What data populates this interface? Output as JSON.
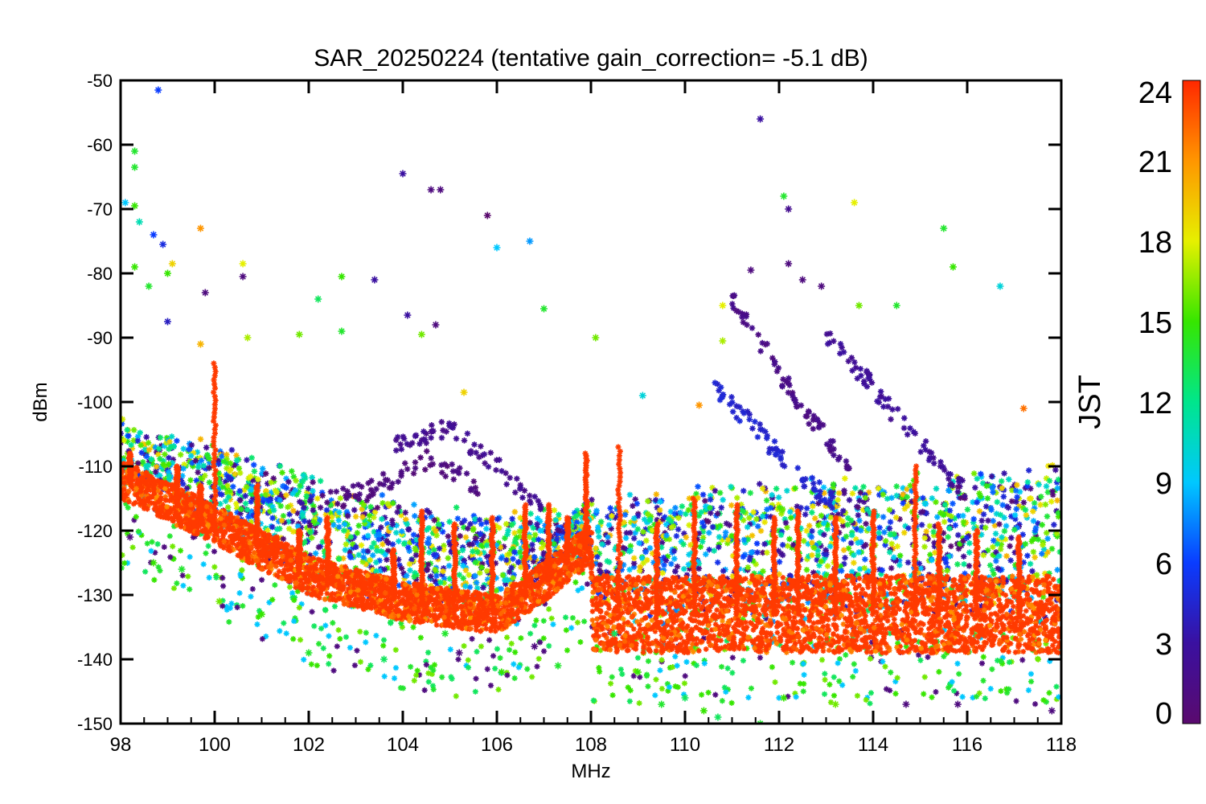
{
  "chart_data": {
    "type": "scatter",
    "title": "SAR_20250224 (tentative gain_correction= -5.1 dB)",
    "xlabel": "MHz",
    "ylabel": "dBm",
    "xlim": [
      98,
      118
    ],
    "ylim": [
      -150,
      -50
    ],
    "x_ticks": [
      "98",
      "100",
      "102",
      "104",
      "106",
      "108",
      "110",
      "112",
      "114",
      "116",
      "118"
    ],
    "y_ticks": [
      "-50",
      "-60",
      "-70",
      "-80",
      "-90",
      "-100",
      "-110",
      "-120",
      "-130",
      "-140",
      "-150"
    ],
    "grid": false,
    "marker": "asterisk",
    "colorbar": {
      "label": "JST",
      "range": [
        0,
        24
      ],
      "ticks": [
        "24",
        "21",
        "18",
        "15",
        "12",
        "9",
        "6",
        "3",
        "0"
      ],
      "colormap": "rainbow (purple-blue-cyan-green-yellow-red)",
      "placement": "right"
    },
    "color_stops": [
      "#5a0a6e",
      "#3a10a0",
      "#0a3cff",
      "#00c8ff",
      "#00e68c",
      "#36e600",
      "#e6f000",
      "#ff9600",
      "#ff2800"
    ],
    "baseline_trend": [
      {
        "x": 98,
        "y": -112
      },
      {
        "x": 100,
        "y": -119
      },
      {
        "x": 102,
        "y": -127
      },
      {
        "x": 104,
        "y": -131
      },
      {
        "x": 106,
        "y": -133
      },
      {
        "x": 107,
        "y": -128
      },
      {
        "x": 108,
        "y": -122
      },
      {
        "x": 108.05,
        "y": -133
      },
      {
        "x": 112,
        "y": -133
      },
      {
        "x": 118,
        "y": -133
      }
    ],
    "upper_envelope": [
      {
        "x": 98,
        "y": -104
      },
      {
        "x": 100,
        "y": -108
      },
      {
        "x": 102,
        "y": -113
      },
      {
        "x": 104,
        "y": -117
      },
      {
        "x": 106,
        "y": -119
      },
      {
        "x": 108,
        "y": -117
      },
      {
        "x": 110,
        "y": -115
      },
      {
        "x": 112,
        "y": -114
      },
      {
        "x": 114,
        "y": -113
      },
      {
        "x": 116,
        "y": -112
      },
      {
        "x": 118,
        "y": -111
      }
    ],
    "spikes": [
      {
        "x": 98.2,
        "y": -108
      },
      {
        "x": 99.2,
        "y": -110
      },
      {
        "x": 99.7,
        "y": -113
      },
      {
        "x": 100.0,
        "y": -94
      },
      {
        "x": 100.9,
        "y": -113
      },
      {
        "x": 101.3,
        "y": -121
      },
      {
        "x": 101.8,
        "y": -120
      },
      {
        "x": 102.4,
        "y": -118
      },
      {
        "x": 103.8,
        "y": -123
      },
      {
        "x": 104.4,
        "y": -117
      },
      {
        "x": 105.1,
        "y": -119
      },
      {
        "x": 105.9,
        "y": -118
      },
      {
        "x": 106.6,
        "y": -116
      },
      {
        "x": 107.1,
        "y": -116
      },
      {
        "x": 107.5,
        "y": -118
      },
      {
        "x": 107.9,
        "y": -108
      },
      {
        "x": 108.6,
        "y": -107
      },
      {
        "x": 109.4,
        "y": -119
      },
      {
        "x": 110.2,
        "y": -115
      },
      {
        "x": 111.1,
        "y": -116
      },
      {
        "x": 111.9,
        "y": -118
      },
      {
        "x": 112.4,
        "y": -117
      },
      {
        "x": 113.2,
        "y": -118
      },
      {
        "x": 114.0,
        "y": -117
      },
      {
        "x": 114.9,
        "y": -110
      },
      {
        "x": 115.4,
        "y": -119
      },
      {
        "x": 116.2,
        "y": -120
      },
      {
        "x": 117.1,
        "y": -121
      }
    ],
    "late_arcs": [
      {
        "hour": 1.5,
        "points": [
          {
            "x": 103.8,
            "y": -107
          },
          {
            "x": 105.0,
            "y": -104
          },
          {
            "x": 106.0,
            "y": -110
          },
          {
            "x": 107.0,
            "y": -117
          }
        ]
      },
      {
        "hour": 1.0,
        "points": [
          {
            "x": 111.0,
            "y": -84
          },
          {
            "x": 111.8,
            "y": -93
          },
          {
            "x": 112.5,
            "y": -101
          },
          {
            "x": 113.5,
            "y": -110
          }
        ]
      },
      {
        "hour": 2.0,
        "points": [
          {
            "x": 113.0,
            "y": -90
          },
          {
            "x": 113.8,
            "y": -96
          },
          {
            "x": 114.8,
            "y": -105
          },
          {
            "x": 116.0,
            "y": -114
          }
        ]
      },
      {
        "hour": 4.0,
        "points": [
          {
            "x": 110.6,
            "y": -98
          },
          {
            "x": 111.5,
            "y": -104
          },
          {
            "x": 112.2,
            "y": -110
          },
          {
            "x": 113.2,
            "y": -116
          }
        ]
      },
      {
        "hour": 0.5,
        "points": [
          {
            "x": 102.2,
            "y": -116
          },
          {
            "x": 103.2,
            "y": -114
          },
          {
            "x": 104.5,
            "y": -109
          },
          {
            "x": 105.6,
            "y": -113
          }
        ]
      }
    ],
    "outliers": [
      {
        "x": 98.8,
        "y": -51.5,
        "hour": 6
      },
      {
        "x": 111.6,
        "y": -56,
        "hour": 3
      },
      {
        "x": 98.3,
        "y": -61,
        "hour": 14
      },
      {
        "x": 98.3,
        "y": -63.5,
        "hour": 14
      },
      {
        "x": 104.0,
        "y": -64.5,
        "hour": 3
      },
      {
        "x": 104.6,
        "y": -67,
        "hour": 1
      },
      {
        "x": 104.8,
        "y": -67,
        "hour": 1
      },
      {
        "x": 105.8,
        "y": -71,
        "hour": 0
      },
      {
        "x": 112.1,
        "y": -68,
        "hour": 14
      },
      {
        "x": 112.2,
        "y": -70,
        "hour": 2
      },
      {
        "x": 113.6,
        "y": -69,
        "hour": 18
      },
      {
        "x": 98.1,
        "y": -69,
        "hour": 9
      },
      {
        "x": 98.3,
        "y": -69.5,
        "hour": 15
      },
      {
        "x": 98.4,
        "y": -72,
        "hour": 11
      },
      {
        "x": 99.7,
        "y": -73,
        "hour": 21
      },
      {
        "x": 98.7,
        "y": -74,
        "hour": 6
      },
      {
        "x": 98.9,
        "y": -75.5,
        "hour": 5
      },
      {
        "x": 106.0,
        "y": -76,
        "hour": 9
      },
      {
        "x": 106.7,
        "y": -75,
        "hour": 8
      },
      {
        "x": 115.5,
        "y": -73,
        "hour": 14
      },
      {
        "x": 115.7,
        "y": -79,
        "hour": 15
      },
      {
        "x": 116.7,
        "y": -82,
        "hour": 10
      },
      {
        "x": 99.1,
        "y": -78.5,
        "hour": 19
      },
      {
        "x": 100.6,
        "y": -78.5,
        "hour": 18
      },
      {
        "x": 98.3,
        "y": -79,
        "hour": 15
      },
      {
        "x": 99.0,
        "y": -80,
        "hour": 15
      },
      {
        "x": 100.6,
        "y": -80.5,
        "hour": 1
      },
      {
        "x": 102.7,
        "y": -80.5,
        "hour": 15
      },
      {
        "x": 103.4,
        "y": -81,
        "hour": 3
      },
      {
        "x": 111.4,
        "y": -79.5,
        "hour": 1
      },
      {
        "x": 112.2,
        "y": -78.5,
        "hour": 1
      },
      {
        "x": 112.5,
        "y": -81,
        "hour": 1
      },
      {
        "x": 112.9,
        "y": -82,
        "hour": 1
      },
      {
        "x": 98.6,
        "y": -82,
        "hour": 14
      },
      {
        "x": 99.8,
        "y": -83,
        "hour": 1
      },
      {
        "x": 107.0,
        "y": -85.5,
        "hour": 14
      },
      {
        "x": 110.8,
        "y": -85,
        "hour": 18
      },
      {
        "x": 113.7,
        "y": -85,
        "hour": 16
      },
      {
        "x": 114.5,
        "y": -85,
        "hour": 14
      },
      {
        "x": 99.0,
        "y": -87.5,
        "hour": 4
      },
      {
        "x": 99.7,
        "y": -91,
        "hour": 20
      },
      {
        "x": 100.7,
        "y": -90,
        "hour": 17
      },
      {
        "x": 101.8,
        "y": -89.5,
        "hour": 16
      },
      {
        "x": 102.2,
        "y": -84,
        "hour": 13
      },
      {
        "x": 102.7,
        "y": -89,
        "hour": 14
      },
      {
        "x": 104.1,
        "y": -86.5,
        "hour": 3
      },
      {
        "x": 104.4,
        "y": -89.5,
        "hour": 16
      },
      {
        "x": 104.7,
        "y": -88,
        "hour": 1
      },
      {
        "x": 108.1,
        "y": -90,
        "hour": 16
      },
      {
        "x": 110.8,
        "y": -90.5,
        "hour": 17
      },
      {
        "x": 110.3,
        "y": -100.5,
        "hour": 21
      },
      {
        "x": 117.2,
        "y": -101,
        "hour": 22
      },
      {
        "x": 109.1,
        "y": -99,
        "hour": 10
      },
      {
        "x": 105.3,
        "y": -98.5,
        "hour": 19
      },
      {
        "x": 108.5,
        "y": -136,
        "hour": 13
      },
      {
        "x": 109.0,
        "y": -142,
        "hour": 15
      },
      {
        "x": 109.5,
        "y": -147,
        "hour": 14
      },
      {
        "x": 110.0,
        "y": -146,
        "hour": 13
      },
      {
        "x": 110.4,
        "y": -148,
        "hour": 15
      },
      {
        "x": 110.7,
        "y": -149,
        "hour": 13
      },
      {
        "x": 111.6,
        "y": -150,
        "hour": 14
      },
      {
        "x": 112.1,
        "y": -146,
        "hour": 15
      },
      {
        "x": 114.7,
        "y": -147,
        "hour": 1
      },
      {
        "x": 115.8,
        "y": -147,
        "hour": 1
      },
      {
        "x": 117.8,
        "y": -148,
        "hour": 1
      },
      {
        "x": 113.2,
        "y": -147,
        "hour": 16
      },
      {
        "x": 102.0,
        "y": -139,
        "hour": 14
      },
      {
        "x": 103.6,
        "y": -140,
        "hour": 13
      },
      {
        "x": 104.9,
        "y": -136,
        "hour": 14
      },
      {
        "x": 106.1,
        "y": -142,
        "hour": 15
      },
      {
        "x": 107.3,
        "y": -141,
        "hour": 14
      },
      {
        "x": 105.2,
        "y": -139,
        "hour": 1
      },
      {
        "x": 106.8,
        "y": -138,
        "hour": 1
      },
      {
        "x": 98.7,
        "y": -125,
        "hour": 15
      },
      {
        "x": 99.3,
        "y": -126,
        "hour": 14
      },
      {
        "x": 98.2,
        "y": -121,
        "hour": 1
      },
      {
        "x": 100.1,
        "y": -131,
        "hour": 16
      },
      {
        "x": 101.0,
        "y": -133,
        "hour": 15
      }
    ]
  }
}
